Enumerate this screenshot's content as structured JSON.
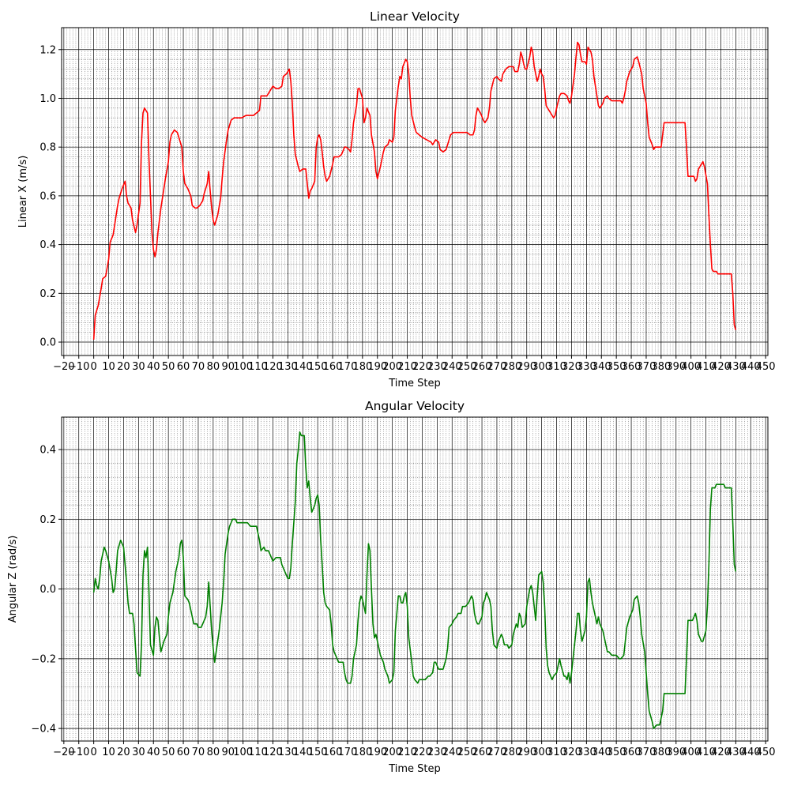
{
  "chart_data": [
    {
      "type": "line",
      "title": "Linear Velocity",
      "x_label": "Time Step",
      "y_label": "Linear X (m/s)",
      "color": "#ff0000",
      "x": [
        0,
        1,
        3,
        5,
        6,
        8,
        10,
        11,
        13,
        15,
        16,
        17,
        19,
        21,
        22,
        23,
        25,
        26,
        28,
        29,
        31,
        32,
        33,
        34,
        36,
        37,
        39,
        40,
        41,
        42,
        43,
        45,
        47,
        48,
        50,
        51,
        52,
        54,
        56,
        58,
        59,
        60,
        61,
        63,
        65,
        66,
        68,
        69,
        71,
        73,
        74,
        76,
        77,
        78,
        79,
        80,
        81,
        83,
        85,
        86,
        87,
        89,
        90,
        92,
        94,
        96,
        99,
        102,
        104,
        107,
        109,
        111,
        112,
        114,
        116,
        118,
        120,
        122,
        124,
        126,
        127,
        129,
        131,
        132,
        133,
        134,
        135,
        137,
        138,
        140,
        142,
        143,
        144,
        145,
        146,
        148,
        149,
        150,
        151,
        152,
        153,
        154,
        155,
        156,
        158,
        160,
        161,
        164,
        166,
        168,
        169,
        171,
        172,
        173,
        174,
        176,
        177,
        178,
        180,
        181,
        182,
        183,
        185,
        186,
        188,
        189,
        190,
        192,
        194,
        195,
        197,
        198,
        200,
        201,
        202,
        204,
        205,
        206,
        207,
        209,
        210,
        211,
        212,
        213,
        215,
        216,
        218,
        220,
        223,
        226,
        227,
        229,
        231,
        232,
        234,
        236,
        237,
        239,
        241,
        244,
        250,
        252,
        254,
        255,
        256,
        257,
        259,
        261,
        262,
        264,
        265,
        266,
        268,
        270,
        271,
        273,
        274,
        276,
        278,
        281,
        282,
        284,
        285,
        286,
        287,
        288,
        289,
        290,
        292,
        293,
        294,
        295,
        297,
        298,
        299,
        300,
        301,
        302,
        303,
        305,
        306,
        308,
        309,
        310,
        312,
        313,
        315,
        317,
        318,
        319,
        320,
        322,
        323,
        324,
        325,
        326,
        327,
        329,
        330,
        331,
        333,
        334,
        335,
        337,
        338,
        339,
        341,
        342,
        344,
        345,
        347,
        350,
        353,
        354,
        355,
        356,
        357,
        359,
        361,
        362,
        364,
        365,
        367,
        368,
        370,
        371,
        372,
        374,
        375,
        376,
        378,
        380,
        381,
        382,
        387,
        392,
        396,
        397,
        398,
        400,
        402,
        403,
        404,
        405,
        407,
        408,
        409,
        411,
        412,
        413,
        414,
        415,
        417,
        418,
        421,
        424,
        427,
        428,
        429,
        430
      ],
      "values": [
        0.01,
        0.11,
        0.15,
        0.22,
        0.26,
        0.27,
        0.34,
        0.41,
        0.44,
        0.52,
        0.56,
        0.59,
        0.63,
        0.66,
        0.6,
        0.57,
        0.55,
        0.5,
        0.45,
        0.48,
        0.57,
        0.82,
        0.94,
        0.96,
        0.94,
        0.75,
        0.45,
        0.38,
        0.35,
        0.38,
        0.45,
        0.55,
        0.63,
        0.67,
        0.74,
        0.82,
        0.85,
        0.87,
        0.86,
        0.82,
        0.8,
        0.7,
        0.65,
        0.63,
        0.6,
        0.56,
        0.55,
        0.55,
        0.56,
        0.58,
        0.61,
        0.65,
        0.7,
        0.62,
        0.55,
        0.5,
        0.48,
        0.52,
        0.59,
        0.67,
        0.74,
        0.83,
        0.87,
        0.91,
        0.92,
        0.92,
        0.92,
        0.93,
        0.93,
        0.93,
        0.94,
        0.95,
        1.01,
        1.01,
        1.01,
        1.03,
        1.05,
        1.04,
        1.04,
        1.05,
        1.09,
        1.1,
        1.12,
        1.07,
        0.98,
        0.85,
        0.77,
        0.72,
        0.7,
        0.71,
        0.71,
        0.65,
        0.59,
        0.62,
        0.63,
        0.66,
        0.8,
        0.84,
        0.85,
        0.83,
        0.78,
        0.72,
        0.68,
        0.66,
        0.68,
        0.73,
        0.76,
        0.76,
        0.77,
        0.8,
        0.8,
        0.79,
        0.78,
        0.83,
        0.9,
        0.97,
        1.04,
        1.04,
        1.0,
        0.9,
        0.92,
        0.96,
        0.93,
        0.85,
        0.78,
        0.7,
        0.67,
        0.72,
        0.78,
        0.8,
        0.81,
        0.83,
        0.82,
        0.84,
        0.95,
        1.05,
        1.09,
        1.08,
        1.13,
        1.16,
        1.15,
        1.1,
        1.0,
        0.93,
        0.88,
        0.86,
        0.85,
        0.84,
        0.83,
        0.82,
        0.81,
        0.83,
        0.82,
        0.79,
        0.78,
        0.79,
        0.81,
        0.85,
        0.86,
        0.86,
        0.86,
        0.85,
        0.85,
        0.87,
        0.93,
        0.96,
        0.94,
        0.91,
        0.9,
        0.92,
        0.96,
        1.03,
        1.08,
        1.09,
        1.08,
        1.07,
        1.1,
        1.12,
        1.13,
        1.13,
        1.11,
        1.11,
        1.14,
        1.19,
        1.17,
        1.14,
        1.12,
        1.12,
        1.17,
        1.21,
        1.19,
        1.13,
        1.07,
        1.09,
        1.12,
        1.1,
        1.09,
        1.04,
        0.97,
        0.95,
        0.94,
        0.92,
        0.93,
        0.96,
        1.01,
        1.02,
        1.02,
        1.01,
        0.99,
        0.98,
        1.01,
        1.1,
        1.17,
        1.23,
        1.22,
        1.18,
        1.15,
        1.15,
        1.14,
        1.21,
        1.19,
        1.16,
        1.09,
        1.01,
        0.97,
        0.96,
        0.98,
        1.0,
        1.01,
        1.0,
        0.99,
        0.99,
        0.99,
        0.98,
        1.0,
        1.03,
        1.07,
        1.11,
        1.13,
        1.16,
        1.17,
        1.15,
        1.1,
        1.04,
        0.98,
        0.9,
        0.84,
        0.81,
        0.79,
        0.8,
        0.8,
        0.8,
        0.85,
        0.9,
        0.9,
        0.9,
        0.9,
        0.8,
        0.68,
        0.68,
        0.68,
        0.66,
        0.67,
        0.71,
        0.73,
        0.74,
        0.72,
        0.65,
        0.52,
        0.4,
        0.3,
        0.29,
        0.29,
        0.28,
        0.28,
        0.28,
        0.28,
        0.2,
        0.07,
        0.05
      ],
      "xlim": [
        -21.5,
        451.5
      ],
      "ylim": [
        -0.055,
        1.29
      ],
      "xticks": [
        {
          "value": -20,
          "label": "−20"
        },
        {
          "value": -10,
          "label": "−10"
        },
        0,
        10,
        20,
        30,
        40,
        50,
        60,
        70,
        80,
        90,
        100,
        110,
        120,
        130,
        140,
        150,
        160,
        170,
        180,
        190,
        200,
        210,
        220,
        230,
        240,
        250,
        260,
        270,
        280,
        290,
        300,
        310,
        320,
        330,
        340,
        350,
        360,
        370,
        380,
        390,
        400,
        410,
        420,
        430,
        440,
        450
      ],
      "yticks": [
        {
          "value": 0,
          "label": "0.0"
        },
        0.2,
        0.4,
        0.6,
        0.8,
        {
          "value": 1,
          "label": "1.0"
        },
        1.2
      ],
      "grid": true,
      "minor_grid": true
    },
    {
      "type": "line",
      "title": "Angular Velocity",
      "x_label": "Time Step",
      "y_label": "Angular Z (rad/s)",
      "color": "#008000",
      "x": [
        0,
        1,
        2,
        3,
        4,
        5,
        7,
        8,
        10,
        12,
        13,
        14,
        15,
        16,
        18,
        20,
        21,
        22,
        23,
        24,
        26,
        27,
        28,
        29,
        31,
        32,
        33,
        34,
        35,
        36,
        37,
        38,
        40,
        41,
        42,
        43,
        44,
        45,
        47,
        49,
        50,
        51,
        53,
        54,
        55,
        57,
        58,
        59,
        60,
        61,
        63,
        64,
        66,
        67,
        69,
        70,
        72,
        73,
        75,
        76,
        77,
        78,
        79,
        80,
        81,
        82,
        84,
        86,
        87,
        88,
        90,
        91,
        93,
        95,
        96,
        99,
        102,
        103,
        105,
        107,
        109,
        111,
        112,
        114,
        115,
        117,
        118,
        120,
        122,
        123,
        125,
        126,
        128,
        130,
        131,
        132,
        133,
        135,
        136,
        137,
        138,
        139,
        140,
        141,
        142,
        143,
        144,
        145,
        146,
        148,
        149,
        150,
        151,
        152,
        153,
        154,
        155,
        156,
        158,
        159,
        160,
        161,
        163,
        164,
        167,
        168,
        169,
        170,
        172,
        173,
        174,
        176,
        177,
        178,
        179,
        180,
        181,
        182,
        183,
        184,
        185,
        186,
        187,
        188,
        189,
        190,
        192,
        194,
        195,
        197,
        198,
        200,
        201,
        202,
        204,
        205,
        206,
        207,
        208,
        209,
        210,
        211,
        213,
        214,
        215,
        217,
        218,
        220,
        222,
        224,
        225,
        227,
        228,
        229,
        231,
        233,
        234,
        236,
        237,
        238,
        240,
        241,
        243,
        244,
        246,
        247,
        249,
        251,
        252,
        253,
        254,
        255,
        256,
        257,
        258,
        260,
        261,
        262,
        263,
        265,
        266,
        267,
        268,
        270,
        271,
        273,
        274,
        275,
        277,
        278,
        280,
        281,
        283,
        284,
        285,
        286,
        287,
        289,
        290,
        292,
        293,
        294,
        296,
        297,
        298,
        300,
        301,
        302,
        303,
        304,
        305,
        307,
        308,
        310,
        311,
        312,
        313,
        315,
        316,
        317,
        318,
        319,
        320,
        321,
        323,
        324,
        325,
        326,
        327,
        329,
        330,
        331,
        332,
        333,
        334,
        335,
        337,
        338,
        339,
        341,
        343,
        344,
        345,
        347,
        348,
        350,
        352,
        353,
        355,
        356,
        357,
        359,
        361,
        362,
        364,
        365,
        366,
        367,
        369,
        370,
        371,
        372,
        374,
        375,
        377,
        378,
        379,
        381,
        382,
        384,
        390,
        396,
        397,
        398,
        399,
        401,
        402,
        403,
        404,
        405,
        407,
        408,
        410,
        411,
        412,
        413,
        414,
        416,
        417,
        418,
        420,
        422,
        423,
        425,
        426,
        427,
        428,
        429,
        430
      ],
      "values": [
        -0.01,
        0.03,
        0.01,
        0.0,
        0.03,
        0.08,
        0.12,
        0.11,
        0.08,
        0.03,
        -0.01,
        0.0,
        0.05,
        0.11,
        0.14,
        0.12,
        0.07,
        0.02,
        -0.04,
        -0.07,
        -0.07,
        -0.1,
        -0.17,
        -0.24,
        -0.25,
        -0.16,
        0.04,
        0.11,
        0.09,
        0.12,
        -0.01,
        -0.16,
        -0.19,
        -0.11,
        -0.08,
        -0.09,
        -0.14,
        -0.18,
        -0.15,
        -0.13,
        -0.08,
        -0.04,
        -0.01,
        0.02,
        0.05,
        0.09,
        0.13,
        0.14,
        0.09,
        -0.02,
        -0.03,
        -0.04,
        -0.08,
        -0.1,
        -0.1,
        -0.11,
        -0.11,
        -0.1,
        -0.08,
        -0.05,
        0.02,
        -0.05,
        -0.12,
        -0.17,
        -0.21,
        -0.18,
        -0.12,
        -0.04,
        0.02,
        0.1,
        0.16,
        0.18,
        0.2,
        0.2,
        0.19,
        0.19,
        0.19,
        0.19,
        0.18,
        0.18,
        0.18,
        0.14,
        0.11,
        0.12,
        0.11,
        0.11,
        0.1,
        0.08,
        0.09,
        0.09,
        0.09,
        0.07,
        0.05,
        0.03,
        0.03,
        0.06,
        0.13,
        0.25,
        0.36,
        0.4,
        0.45,
        0.44,
        0.44,
        0.44,
        0.35,
        0.29,
        0.31,
        0.26,
        0.22,
        0.24,
        0.26,
        0.27,
        0.24,
        0.14,
        0.07,
        -0.01,
        -0.04,
        -0.05,
        -0.06,
        -0.1,
        -0.16,
        -0.18,
        -0.2,
        -0.21,
        -0.21,
        -0.24,
        -0.26,
        -0.27,
        -0.27,
        -0.25,
        -0.2,
        -0.16,
        -0.09,
        -0.04,
        -0.02,
        -0.03,
        -0.05,
        -0.07,
        0.04,
        0.13,
        0.11,
        0.0,
        -0.1,
        -0.14,
        -0.13,
        -0.15,
        -0.19,
        -0.21,
        -0.23,
        -0.25,
        -0.27,
        -0.26,
        -0.24,
        -0.12,
        -0.02,
        -0.02,
        -0.04,
        -0.04,
        -0.02,
        -0.01,
        -0.05,
        -0.14,
        -0.21,
        -0.25,
        -0.26,
        -0.27,
        -0.26,
        -0.26,
        -0.26,
        -0.25,
        -0.25,
        -0.24,
        -0.21,
        -0.21,
        -0.23,
        -0.23,
        -0.23,
        -0.2,
        -0.17,
        -0.11,
        -0.1,
        -0.09,
        -0.08,
        -0.07,
        -0.07,
        -0.05,
        -0.05,
        -0.04,
        -0.03,
        -0.02,
        -0.03,
        -0.07,
        -0.09,
        -0.1,
        -0.1,
        -0.08,
        -0.04,
        -0.03,
        -0.01,
        -0.03,
        -0.05,
        -0.12,
        -0.16,
        -0.17,
        -0.15,
        -0.13,
        -0.14,
        -0.16,
        -0.16,
        -0.17,
        -0.16,
        -0.13,
        -0.1,
        -0.11,
        -0.07,
        -0.08,
        -0.11,
        -0.1,
        -0.05,
        0.0,
        0.01,
        -0.01,
        -0.09,
        -0.02,
        0.04,
        0.05,
        0.02,
        -0.05,
        -0.17,
        -0.22,
        -0.24,
        -0.26,
        -0.25,
        -0.24,
        -0.22,
        -0.2,
        -0.22,
        -0.25,
        -0.25,
        -0.26,
        -0.24,
        -0.27,
        -0.24,
        -0.2,
        -0.12,
        -0.07,
        -0.07,
        -0.12,
        -0.15,
        -0.12,
        -0.08,
        0.02,
        0.03,
        -0.01,
        -0.04,
        -0.06,
        -0.1,
        -0.08,
        -0.1,
        -0.12,
        -0.16,
        -0.18,
        -0.18,
        -0.19,
        -0.19,
        -0.19,
        -0.2,
        -0.2,
        -0.19,
        -0.15,
        -0.11,
        -0.08,
        -0.06,
        -0.03,
        -0.02,
        -0.04,
        -0.08,
        -0.13,
        -0.18,
        -0.24,
        -0.3,
        -0.35,
        -0.38,
        -0.4,
        -0.39,
        -0.39,
        -0.39,
        -0.35,
        -0.3,
        -0.3,
        -0.3,
        -0.3,
        -0.2,
        -0.09,
        -0.09,
        -0.09,
        -0.08,
        -0.07,
        -0.09,
        -0.13,
        -0.15,
        -0.15,
        -0.12,
        -0.05,
        0.07,
        0.23,
        0.29,
        0.29,
        0.3,
        0.3,
        0.3,
        0.3,
        0.29,
        0.29,
        0.29,
        0.29,
        0.19,
        0.07,
        0.05
      ],
      "xlim": [
        -21.5,
        451.5
      ],
      "ylim": [
        -0.436,
        0.493
      ],
      "xticks": [
        {
          "value": -20,
          "label": "−20"
        },
        {
          "value": -10,
          "label": "−10"
        },
        0,
        10,
        20,
        30,
        40,
        50,
        60,
        70,
        80,
        90,
        100,
        110,
        120,
        130,
        140,
        150,
        160,
        170,
        180,
        190,
        200,
        210,
        220,
        230,
        240,
        250,
        260,
        270,
        280,
        290,
        300,
        310,
        320,
        330,
        340,
        350,
        360,
        370,
        380,
        390,
        400,
        410,
        420,
        430,
        440,
        450
      ],
      "yticks": [
        {
          "value": -0.4,
          "label": "−0.4"
        },
        {
          "value": -0.2,
          "label": "−0.2"
        },
        {
          "value": 0,
          "label": "0.0"
        },
        0.2,
        0.4
      ],
      "grid": true,
      "minor_grid": true
    }
  ]
}
